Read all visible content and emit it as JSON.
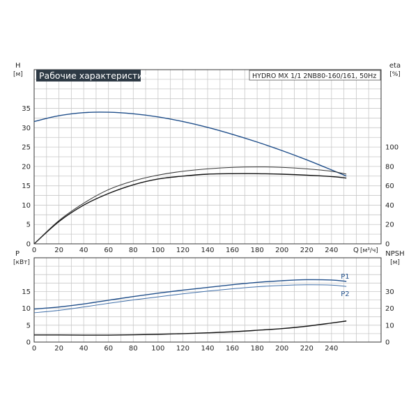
{
  "header": {
    "title": "Рабочие характеристики",
    "model": "HYDRO MX 1/1 2NB80-160/161, 50Hz",
    "title_bg": "#2e3a45"
  },
  "chart_data": [
    {
      "type": "line",
      "x_name": "Q",
      "x_unit": "[м³/ч]",
      "x_ticks": [
        0,
        20,
        40,
        60,
        80,
        100,
        120,
        140,
        160,
        180,
        200,
        220,
        240
      ],
      "xlim": [
        0,
        280
      ],
      "left_axis": {
        "name": "H",
        "unit": "[м]",
        "lim": [
          0,
          45
        ],
        "ticks": [
          0,
          5,
          10,
          15,
          20,
          25,
          30,
          35
        ]
      },
      "right_axis": {
        "name": "eta",
        "unit": "[%]",
        "lim": [
          0,
          180
        ],
        "ticks": [
          0,
          20,
          40,
          60,
          80,
          100
        ]
      },
      "grid": true,
      "series": [
        {
          "name": "",
          "axis": "left",
          "color": "#1f4e8a",
          "x": [
            0,
            20,
            40,
            60,
            80,
            100,
            120,
            140,
            160,
            180,
            200,
            220,
            240,
            252
          ],
          "values": [
            31.6,
            33.1,
            33.9,
            34.0,
            33.6,
            32.8,
            31.6,
            30.1,
            28.3,
            26.3,
            24.1,
            21.7,
            19.1,
            17.5
          ]
        },
        {
          "name": "",
          "axis": "right",
          "color": "#111111",
          "x": [
            0,
            20,
            40,
            60,
            80,
            100,
            120,
            140,
            160,
            180,
            200,
            220,
            240,
            252
          ],
          "values": [
            0,
            23,
            40,
            52,
            61,
            67,
            70,
            72,
            72.5,
            72.5,
            72,
            71,
            69.5,
            68
          ]
        },
        {
          "name": "",
          "axis": "right",
          "color": "#333333",
          "x": [
            0,
            20,
            40,
            60,
            80,
            100,
            120,
            140,
            160,
            180,
            200,
            220,
            240,
            252
          ],
          "values": [
            0,
            24,
            42,
            56,
            65,
            71,
            75,
            77.5,
            79,
            79.5,
            79,
            77.5,
            75,
            72
          ]
        }
      ]
    },
    {
      "type": "line",
      "x_ticks": [
        0,
        20,
        40,
        60,
        80,
        100,
        120,
        140,
        160,
        180,
        200,
        220,
        240
      ],
      "xlim": [
        0,
        280
      ],
      "left_axis": {
        "name": "P",
        "unit": "[кВт]",
        "lim": [
          0,
          25
        ],
        "ticks": [
          0,
          5,
          10,
          15
        ]
      },
      "right_axis": {
        "name": "NPSH",
        "unit": "[м]",
        "lim": [
          0,
          50
        ],
        "ticks": [
          0,
          10,
          20,
          30
        ]
      },
      "grid": true,
      "series": [
        {
          "name": "P1",
          "axis": "left",
          "color": "#1f4e8a",
          "x": [
            0,
            20,
            40,
            60,
            80,
            100,
            120,
            140,
            160,
            180,
            200,
            220,
            240,
            252
          ],
          "values": [
            9.8,
            10.4,
            11.3,
            12.4,
            13.5,
            14.5,
            15.4,
            16.2,
            17.0,
            17.7,
            18.2,
            18.5,
            18.4,
            18.0
          ]
        },
        {
          "name": "P2",
          "axis": "left",
          "color": "#3f6ea8",
          "x": [
            0,
            20,
            40,
            60,
            80,
            100,
            120,
            140,
            160,
            180,
            200,
            220,
            240,
            252
          ],
          "values": [
            8.7,
            9.4,
            10.4,
            11.5,
            12.5,
            13.4,
            14.3,
            15.1,
            15.8,
            16.4,
            16.8,
            17.0,
            16.9,
            16.5
          ]
        },
        {
          "name": "",
          "axis": "right",
          "color": "#111111",
          "x": [
            0,
            20,
            40,
            60,
            80,
            100,
            120,
            140,
            160,
            180,
            200,
            220,
            240,
            252
          ],
          "values": [
            4.2,
            4.2,
            4.1,
            4.1,
            4.3,
            4.6,
            5.0,
            5.5,
            6.1,
            7.0,
            8.0,
            9.4,
            11.3,
            12.5
          ]
        }
      ]
    }
  ]
}
